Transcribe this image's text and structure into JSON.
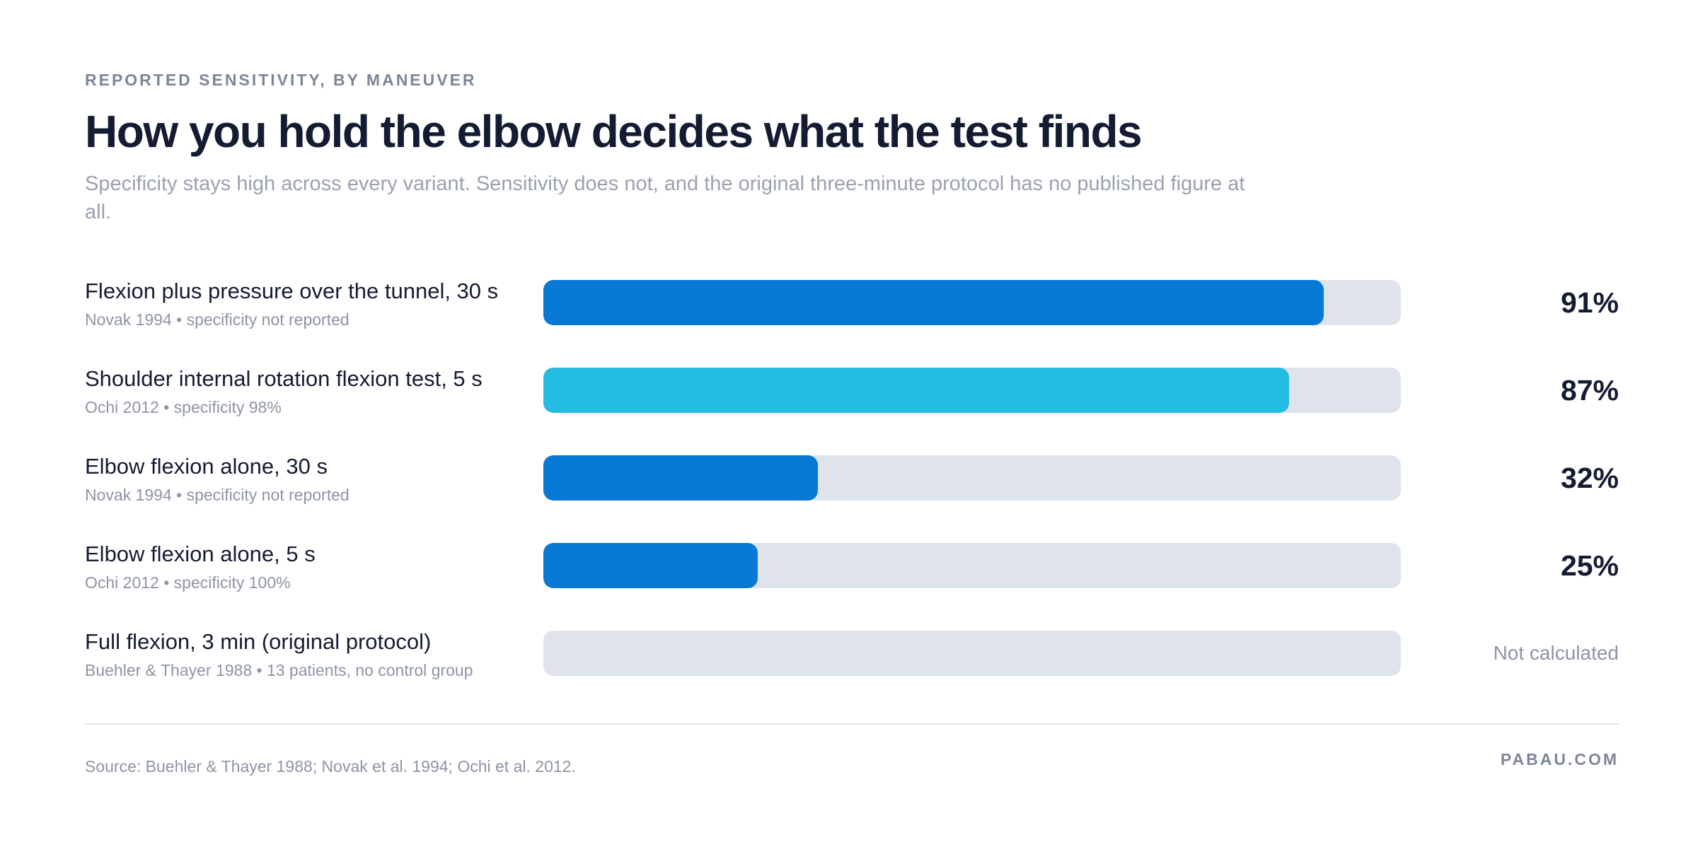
{
  "header": {
    "eyebrow": "REPORTED SENSITIVITY, BY MANEUVER",
    "title": "How you hold the elbow decides what the test finds",
    "subtitle": "Specificity stays high across every variant. Sensitivity does not, and the original three-minute protocol has no published figure at all."
  },
  "chart_data": {
    "type": "bar",
    "orientation": "horizontal",
    "xlim": [
      0,
      100
    ],
    "unit": "%",
    "grid": false,
    "categories": [
      "Flexion plus pressure over the tunnel, 30 s",
      "Shoulder internal rotation flexion test, 5 s",
      "Elbow flexion alone, 30 s",
      "Elbow flexion alone, 5 s",
      "Full flexion, 3 min (original protocol)"
    ],
    "rows": [
      {
        "label": "Flexion plus pressure over the tunnel, 30 s",
        "meta": "Novak 1994 • specificity not reported",
        "value": 91,
        "value_label": "91%",
        "color": "#0779d4"
      },
      {
        "label": "Shoulder internal rotation flexion test, 5 s",
        "meta": "Ochi 2012 • specificity 98%",
        "value": 87,
        "value_label": "87%",
        "color": "#25bce3"
      },
      {
        "label": "Elbow flexion alone, 30 s",
        "meta": "Novak 1994 • specificity not reported",
        "value": 32,
        "value_label": "32%",
        "color": "#0779d4"
      },
      {
        "label": "Elbow flexion alone, 5 s",
        "meta": "Ochi 2012 • specificity 100%",
        "value": 25,
        "value_label": "25%",
        "color": "#0779d4"
      },
      {
        "label": "Full flexion, 3 min (original protocol)",
        "meta": "Buehler & Thayer 1988 • 13 patients, no control group",
        "value": null,
        "value_label": "Not calculated",
        "color": "#0779d4"
      }
    ],
    "track_color": "#dfe3ec"
  },
  "footer": {
    "source": "Source: Buehler & Thayer 1988; Novak et al. 1994; Ochi et al. 2012.",
    "brand": "PABAU.COM"
  }
}
